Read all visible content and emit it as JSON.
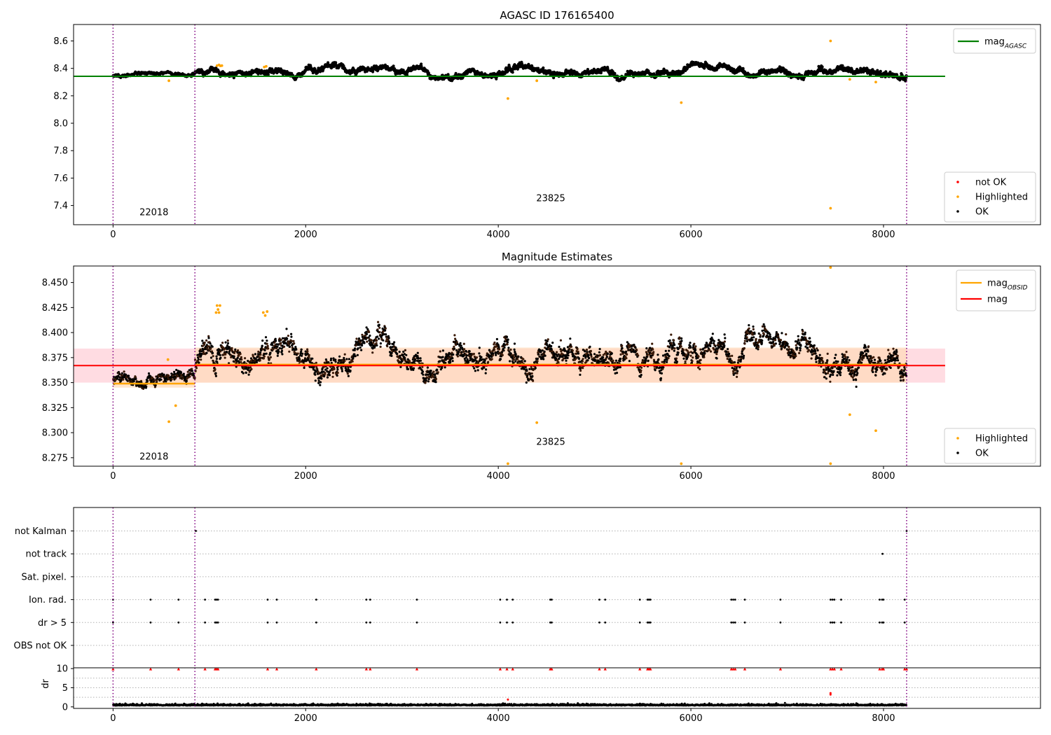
{
  "chart_data": [
    {
      "id": "agasc",
      "type": "scatter",
      "title": "AGASC ID 176165400",
      "xlabel": "",
      "ylabel": "",
      "xlim": [
        -410,
        9630
      ],
      "ylim": [
        7.26,
        8.72
      ],
      "xticks": [
        0,
        2000,
        4000,
        6000,
        8000
      ],
      "xtick_labels": [
        "0",
        "2000",
        "4000",
        "6000",
        "8000"
      ],
      "yticks": [
        7.4,
        7.6,
        7.8,
        8.0,
        8.2,
        8.4,
        8.6
      ],
      "ytick_labels": [
        "7.4",
        "7.6",
        "7.8",
        "8.0",
        "8.2",
        "8.4",
        "8.6"
      ],
      "obsid_boundaries": [
        0,
        850,
        8240
      ],
      "obsid_labels": [
        {
          "text": "22018",
          "x": 425,
          "y": 7.33
        },
        {
          "text": "23825",
          "x": 4545,
          "y": 7.43
        }
      ],
      "reference_line": {
        "name": "mag_AGASC",
        "y": 8.342,
        "x_range": [
          -410,
          8640
        ],
        "color": "#008000"
      },
      "ok_band": {
        "segments": [
          [
            0,
            850,
            8.352,
            0.012
          ],
          [
            850,
            8240,
            8.372,
            0.026
          ]
        ]
      },
      "highlighted_points": [
        [
          580,
          8.31
        ],
        [
          1080,
          8.42
        ],
        [
          1100,
          8.425
        ],
        [
          1115,
          8.418
        ],
        [
          1130,
          8.42
        ],
        [
          1570,
          8.41
        ],
        [
          1590,
          8.415
        ],
        [
          4100,
          8.18
        ],
        [
          4400,
          8.31
        ],
        [
          5900,
          8.15
        ],
        [
          7450,
          8.6
        ],
        [
          7450,
          7.38
        ],
        [
          7650,
          8.32
        ],
        [
          7920,
          8.3
        ]
      ],
      "legend_lines": [
        {
          "label": "mag",
          "sub": "AGASC",
          "color": "#008000"
        }
      ],
      "legend_markers": [
        {
          "label": "not OK",
          "color": "#ff0000"
        },
        {
          "label": "Highlighted",
          "color": "#ffa500"
        },
        {
          "label": "OK",
          "color": "#000000"
        }
      ]
    },
    {
      "id": "estimates",
      "type": "scatter",
      "title": "Magnitude Estimates",
      "xlabel": "",
      "ylabel": "",
      "xlim": [
        -410,
        9630
      ],
      "ylim": [
        8.2665,
        8.4665
      ],
      "xticks": [
        0,
        2000,
        4000,
        6000,
        8000
      ],
      "xtick_labels": [
        "0",
        "2000",
        "4000",
        "6000",
        "8000"
      ],
      "yticks": [
        8.275,
        8.3,
        8.325,
        8.35,
        8.375,
        8.4,
        8.425,
        8.45
      ],
      "ytick_labels": [
        "8.275",
        "8.300",
        "8.325",
        "8.350",
        "8.375",
        "8.400",
        "8.425",
        "8.450"
      ],
      "obsid_boundaries": [
        0,
        850,
        8240
      ],
      "obsid_labels": [
        {
          "text": "22018",
          "x": 425,
          "y": 8.273
        },
        {
          "text": "23825",
          "x": 4545,
          "y": 8.288
        }
      ],
      "mag": {
        "value": 8.367,
        "band": [
          8.35,
          8.384
        ],
        "x_range": [
          -410,
          8640
        ],
        "color": "#ff0000"
      },
      "mag_obsid": [
        {
          "x_range": [
            0,
            850
          ],
          "value": 8.349,
          "band": [
            8.345,
            8.353
          ]
        },
        {
          "x_range": [
            850,
            8240
          ],
          "value": 8.368,
          "band": [
            8.35,
            8.385
          ]
        }
      ],
      "ok_band": {
        "segments": [
          [
            0,
            850,
            8.352,
            0.006
          ],
          [
            850,
            8240,
            8.37,
            0.013
          ]
        ]
      },
      "highlighted_points": [
        [
          570,
          8.373
        ],
        [
          580,
          8.311
        ],
        [
          650,
          8.327
        ],
        [
          1070,
          8.42
        ],
        [
          1080,
          8.427
        ],
        [
          1090,
          8.423
        ],
        [
          1100,
          8.42
        ],
        [
          1110,
          8.427
        ],
        [
          1560,
          8.42
        ],
        [
          1580,
          8.417
        ],
        [
          1600,
          8.421
        ],
        [
          4100,
          8.269
        ],
        [
          4400,
          8.31
        ],
        [
          5900,
          8.269
        ],
        [
          7450,
          8.465
        ],
        [
          7450,
          8.269
        ],
        [
          7650,
          8.318
        ],
        [
          7920,
          8.302
        ]
      ],
      "legend_lines": [
        {
          "label": "mag",
          "sub": "OBSID",
          "color": "#ffa500"
        },
        {
          "label": "mag",
          "sub": "",
          "color": "#ff0000"
        }
      ],
      "legend_markers": [
        {
          "label": "Highlighted",
          "color": "#ffa500"
        },
        {
          "label": "OK",
          "color": "#000000"
        }
      ]
    },
    {
      "id": "flags",
      "type": "scatter",
      "title": "",
      "xlabel": "",
      "ylabel": "",
      "xlim": [
        -410,
        9630
      ],
      "categories": [
        "not Kalman",
        "not track",
        "Sat. pixel.",
        "Ion. rad.",
        "dr > 5",
        "OBS not OK"
      ],
      "obsid_boundaries": [
        0,
        850,
        8240
      ],
      "flag_points": {
        "not Kalman": [
          860,
          8240
        ],
        "not track": [
          7990
        ],
        "Sat. pixel.": [],
        "Ion. rad.": [
          0,
          390,
          680,
          955,
          1060,
          1075,
          1090,
          1605,
          1700,
          2110,
          2630,
          2670,
          3155,
          4020,
          4090,
          4150,
          4540,
          4555,
          5050,
          5110,
          5470,
          5550,
          5565,
          5580,
          6420,
          6440,
          6460,
          6560,
          6930,
          7450,
          7470,
          7490,
          7560,
          7960,
          7985,
          8000,
          8220
        ],
        "dr > 5": [
          0,
          390,
          680,
          955,
          1060,
          1075,
          1090,
          1605,
          1700,
          2110,
          2630,
          2670,
          3155,
          4020,
          4090,
          4150,
          4540,
          4555,
          5050,
          5110,
          5470,
          5550,
          5565,
          5580,
          6420,
          6440,
          6460,
          6560,
          6930,
          7450,
          7470,
          7490,
          7560,
          7960,
          7985,
          8000,
          8220
        ],
        "OBS not OK": []
      }
    },
    {
      "id": "dr",
      "type": "scatter",
      "title": "",
      "xlabel": "",
      "ylabel": "dr",
      "xlim": [
        -410,
        9630
      ],
      "ylim": [
        -0.4,
        10.2
      ],
      "xticks": [
        0,
        2000,
        4000,
        6000,
        8000
      ],
      "xtick_labels": [
        "0",
        "2000",
        "4000",
        "6000",
        "8000"
      ],
      "yticks": [
        0,
        5,
        10
      ],
      "ytick_labels": [
        "0",
        "5",
        "10"
      ],
      "obsid_boundaries": [
        0,
        850,
        8240
      ],
      "dr_baseline": 0.35,
      "dr_outliers": [
        [
          4100,
          1.9
        ],
        [
          7450,
          3.2
        ],
        [
          7450,
          3.6
        ]
      ],
      "dr_clipped_x": [
        0,
        390,
        680,
        955,
        1060,
        1075,
        1090,
        1605,
        1700,
        2110,
        2630,
        2670,
        3155,
        4020,
        4090,
        4150,
        4540,
        4555,
        5050,
        5110,
        5470,
        5550,
        5565,
        5580,
        6420,
        6440,
        6460,
        6560,
        6930,
        7450,
        7470,
        7490,
        7560,
        7960,
        7985,
        8000,
        8220,
        8240
      ]
    }
  ],
  "colors": {
    "ok": "#000000",
    "highlighted": "#ffa500",
    "not_ok": "#ff0000",
    "obsid_boundary": "#800080",
    "agasc_line": "#008000",
    "mag_line": "#ff0000",
    "mag_band": "#ffc0cb",
    "mag_obsid_line": "#ffa500",
    "mag_obsid_band": "#ffdab9",
    "flag_gridline": "#b0b0b0"
  }
}
